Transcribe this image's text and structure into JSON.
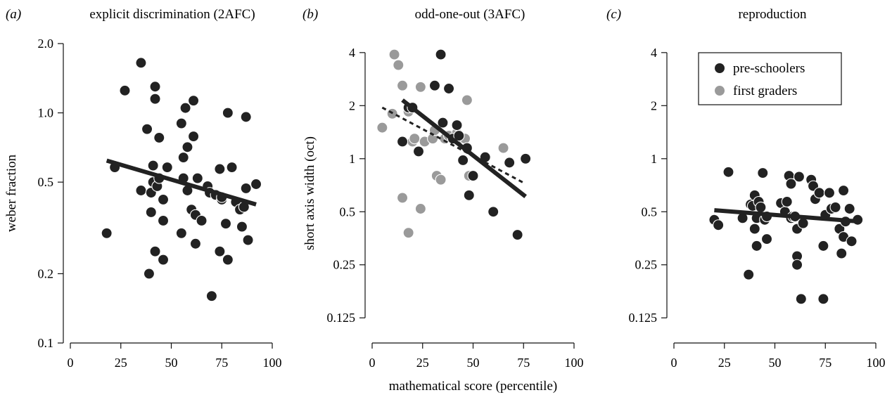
{
  "colors": {
    "pre_schoolers": "#222222",
    "first_graders": "#9a9a9a",
    "fit_line": "#222222"
  },
  "shared_xlabel": "mathematical score (percentile)",
  "legend": {
    "entries": [
      "pre-schoolers",
      "first graders"
    ],
    "placement": "top-left of panel (c)"
  },
  "chart_data": [
    {
      "type": "scatter",
      "panel_label": "(a)",
      "title": "explicit discrimination (2AFC)",
      "xlabel": "",
      "ylabel": "weber fraction",
      "y_scale": "log",
      "xlim": [
        0,
        100
      ],
      "ylim": [
        0.1,
        2.0
      ],
      "xticks": [
        0,
        25,
        50,
        75,
        100
      ],
      "yticks": [
        0.1,
        0.2,
        0.5,
        1.0,
        2.0
      ],
      "ytick_labels": [
        "0.1",
        "0.2",
        "0.5",
        "1.0",
        "2.0"
      ],
      "grid": false,
      "series": [
        {
          "group": "pre_schoolers",
          "points": [
            [
              18,
              0.3
            ],
            [
              22,
              0.58
            ],
            [
              27,
              1.25
            ],
            [
              35,
              1.65
            ],
            [
              35,
              0.46
            ],
            [
              38,
              0.85
            ],
            [
              39,
              0.2
            ],
            [
              40,
              0.45
            ],
            [
              40,
              0.37
            ],
            [
              41,
              0.59
            ],
            [
              41,
              0.5
            ],
            [
              42,
              1.3
            ],
            [
              42,
              1.15
            ],
            [
              42,
              0.25
            ],
            [
              43,
              0.48
            ],
            [
              44,
              0.52
            ],
            [
              44,
              0.78
            ],
            [
              46,
              0.42
            ],
            [
              46,
              0.34
            ],
            [
              46,
              0.23
            ],
            [
              48,
              0.58
            ],
            [
              55,
              0.9
            ],
            [
              55,
              0.3
            ],
            [
              56,
              0.52
            ],
            [
              56,
              0.64
            ],
            [
              57,
              1.05
            ],
            [
              58,
              0.71
            ],
            [
              58,
              0.46
            ],
            [
              60,
              0.38
            ],
            [
              61,
              0.79
            ],
            [
              61,
              1.13
            ],
            [
              62,
              0.36
            ],
            [
              62,
              0.27
            ],
            [
              63,
              0.52
            ],
            [
              65,
              0.34
            ],
            [
              68,
              0.48
            ],
            [
              69,
              0.45
            ],
            [
              70,
              0.16
            ],
            [
              72,
              0.44
            ],
            [
              74,
              0.57
            ],
            [
              74,
              0.25
            ],
            [
              75,
              0.42
            ],
            [
              75,
              0.43
            ],
            [
              77,
              0.33
            ],
            [
              78,
              1.0
            ],
            [
              78,
              0.23
            ],
            [
              80,
              0.58
            ],
            [
              82,
              0.41
            ],
            [
              84,
              0.38
            ],
            [
              85,
              0.32
            ],
            [
              86,
              0.39
            ],
            [
              87,
              0.96
            ],
            [
              87,
              0.47
            ],
            [
              88,
              0.28
            ],
            [
              92,
              0.49
            ]
          ]
        }
      ],
      "fits": [
        {
          "group": "pre_schoolers",
          "style": "solid",
          "from": [
            18,
            0.62
          ],
          "to": [
            92,
            0.4
          ]
        }
      ]
    },
    {
      "type": "scatter",
      "panel_label": "(b)",
      "title": "odd-one-out (3AFC)",
      "xlabel": "mathematical score (percentile)",
      "ylabel": "short axis width (oct)",
      "y_scale": "log",
      "xlim": [
        0,
        100
      ],
      "ylim": [
        0.09,
        4.5
      ],
      "xticks": [
        0,
        25,
        50,
        75,
        100
      ],
      "yticks": [
        0.125,
        0.25,
        0.5,
        1,
        2,
        4
      ],
      "ytick_labels": [
        "0.125",
        "0.25",
        "0.5",
        "1",
        "2",
        "4"
      ],
      "grid": false,
      "series": [
        {
          "group": "first_graders",
          "points": [
            [
              5,
              1.5
            ],
            [
              10,
              1.8
            ],
            [
              11,
              3.9
            ],
            [
              13,
              3.4
            ],
            [
              15,
              0.6
            ],
            [
              15,
              2.6
            ],
            [
              18,
              1.85
            ],
            [
              18,
              0.38
            ],
            [
              20,
              1.25
            ],
            [
              21,
              1.3
            ],
            [
              24,
              0.52
            ],
            [
              24,
              2.55
            ],
            [
              26,
              1.25
            ],
            [
              30,
              1.3
            ],
            [
              31,
              1.45
            ],
            [
              32,
              0.8
            ],
            [
              34,
              0.76
            ],
            [
              36,
              1.3
            ],
            [
              38,
              1.35
            ],
            [
              42,
              1.4
            ],
            [
              44,
              1.3
            ],
            [
              46,
              1.3
            ],
            [
              47,
              2.15
            ],
            [
              48,
              0.8
            ],
            [
              65,
              1.15
            ]
          ]
        },
        {
          "group": "pre_schoolers",
          "points": [
            [
              15,
              1.25
            ],
            [
              18,
              1.95
            ],
            [
              20,
              1.95
            ],
            [
              23,
              1.1
            ],
            [
              31,
              2.6
            ],
            [
              34,
              3.9
            ],
            [
              35,
              1.6
            ],
            [
              38,
              2.5
            ],
            [
              40,
              1.3
            ],
            [
              42,
              1.55
            ],
            [
              43,
              1.35
            ],
            [
              45,
              0.98
            ],
            [
              47,
              1.15
            ],
            [
              48,
              0.62
            ],
            [
              50,
              0.8
            ],
            [
              56,
              1.02
            ],
            [
              60,
              0.5
            ],
            [
              68,
              0.95
            ],
            [
              72,
              0.37
            ],
            [
              76,
              1.0
            ]
          ]
        }
      ],
      "fits": [
        {
          "group": "pre_schoolers",
          "style": "solid",
          "from": [
            15,
            2.15
          ],
          "to": [
            76,
            0.61
          ]
        },
        {
          "group": "first_graders",
          "style": "dashed",
          "from": [
            5,
            1.95
          ],
          "to": [
            76,
            0.72
          ]
        }
      ]
    },
    {
      "type": "scatter",
      "panel_label": "(c)",
      "title": "reproduction",
      "xlabel": "",
      "ylabel": "",
      "y_scale": "log",
      "xlim": [
        0,
        100
      ],
      "ylim": [
        0.09,
        4.5
      ],
      "xticks": [
        0,
        25,
        50,
        75,
        100
      ],
      "yticks": [
        0.125,
        0.25,
        0.5,
        1,
        2,
        4
      ],
      "ytick_labels": [
        "0.125",
        "0.25",
        "0.5",
        "1",
        "2",
        "4"
      ],
      "grid": false,
      "series": [
        {
          "group": "pre_schoolers",
          "points": [
            [
              20,
              0.45
            ],
            [
              22,
              0.42
            ],
            [
              27,
              0.84
            ],
            [
              34,
              0.46
            ],
            [
              37,
              0.22
            ],
            [
              38,
              0.55
            ],
            [
              39,
              0.54
            ],
            [
              40,
              0.62
            ],
            [
              40,
              0.4
            ],
            [
              41,
              0.46
            ],
            [
              41,
              0.32
            ],
            [
              42,
              0.57
            ],
            [
              43,
              0.53
            ],
            [
              44,
              0.83
            ],
            [
              45,
              0.45
            ],
            [
              46,
              0.47
            ],
            [
              46,
              0.35
            ],
            [
              53,
              0.56
            ],
            [
              55,
              0.5
            ],
            [
              56,
              0.57
            ],
            [
              57,
              0.8
            ],
            [
              58,
              0.72
            ],
            [
              58,
              0.46
            ],
            [
              59,
              0.47
            ],
            [
              60,
              0.47
            ],
            [
              61,
              0.4
            ],
            [
              61,
              0.28
            ],
            [
              61,
              0.25
            ],
            [
              62,
              0.79
            ],
            [
              63,
              0.16
            ],
            [
              64,
              0.43
            ],
            [
              68,
              0.76
            ],
            [
              69,
              0.7
            ],
            [
              70,
              0.59
            ],
            [
              72,
              0.64
            ],
            [
              74,
              0.16
            ],
            [
              74,
              0.32
            ],
            [
              75,
              0.48
            ],
            [
              77,
              0.64
            ],
            [
              78,
              0.52
            ],
            [
              80,
              0.53
            ],
            [
              82,
              0.4
            ],
            [
              83,
              0.29
            ],
            [
              84,
              0.66
            ],
            [
              84,
              0.36
            ],
            [
              85,
              0.44
            ],
            [
              87,
              0.52
            ],
            [
              88,
              0.34
            ],
            [
              91,
              0.45
            ]
          ]
        }
      ],
      "fits": [
        {
          "group": "pre_schoolers",
          "style": "solid",
          "from": [
            20,
            0.51
          ],
          "to": [
            92,
            0.44
          ]
        }
      ]
    }
  ]
}
